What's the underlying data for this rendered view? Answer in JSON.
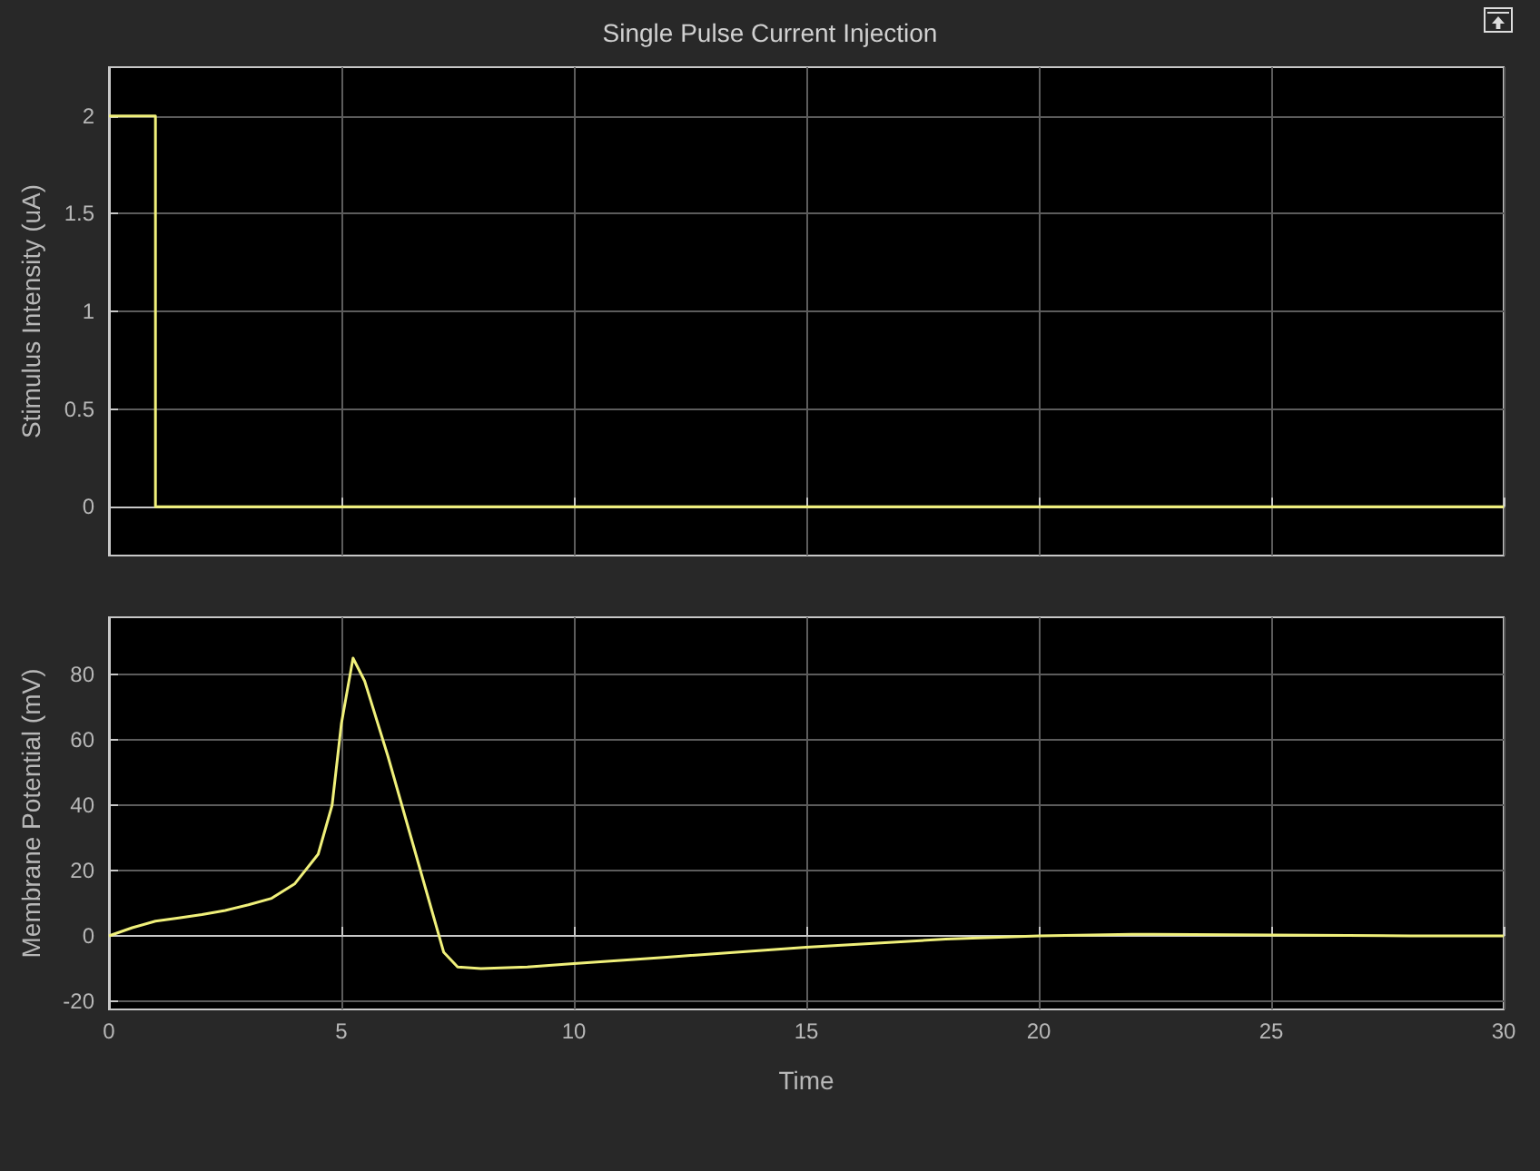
{
  "chart_data": [
    {
      "type": "line",
      "title": "Single Pulse Current Injection",
      "ylabel": "Stimulus Intensity (uA)",
      "color": "#f0f07a",
      "x": [
        0,
        1,
        1,
        30
      ],
      "values": [
        2,
        2,
        0,
        0
      ],
      "xlim": [
        0,
        30
      ],
      "xticks": [
        0,
        5,
        10,
        15,
        20,
        25,
        30
      ],
      "ylim": [
        -0.25,
        2.25
      ],
      "yticks": [
        0,
        0.5,
        1,
        1.5,
        2
      ],
      "grid": true,
      "tick_labels": "y"
    },
    {
      "type": "line",
      "xlabel": "Time",
      "ylabel": "Membrane Potential (mV)",
      "color": "#f0f07a",
      "x": [
        0,
        0.5,
        1,
        1.5,
        2,
        2.5,
        3,
        3.5,
        4,
        4.5,
        4.8,
        5,
        5.25,
        5.5,
        6,
        6.5,
        7,
        7.2,
        7.5,
        8,
        9,
        10,
        12,
        15,
        18,
        20,
        22,
        25,
        28,
        30
      ],
      "values": [
        0,
        2.5,
        4.5,
        5.5,
        6.5,
        7.8,
        9.5,
        11.5,
        16,
        25,
        40,
        65,
        85,
        78,
        55,
        30,
        5,
        -5,
        -9.5,
        -10,
        -9.5,
        -8.5,
        -6.5,
        -3.5,
        -1,
        0,
        0.5,
        0.3,
        0,
        0
      ],
      "xlim": [
        0,
        30
      ],
      "xticks": [
        0,
        5,
        10,
        15,
        20,
        25,
        30
      ],
      "ylim": [
        -22.5,
        97.5
      ],
      "yticks": [
        -20,
        0,
        20,
        40,
        60,
        80
      ],
      "grid": true
    }
  ]
}
